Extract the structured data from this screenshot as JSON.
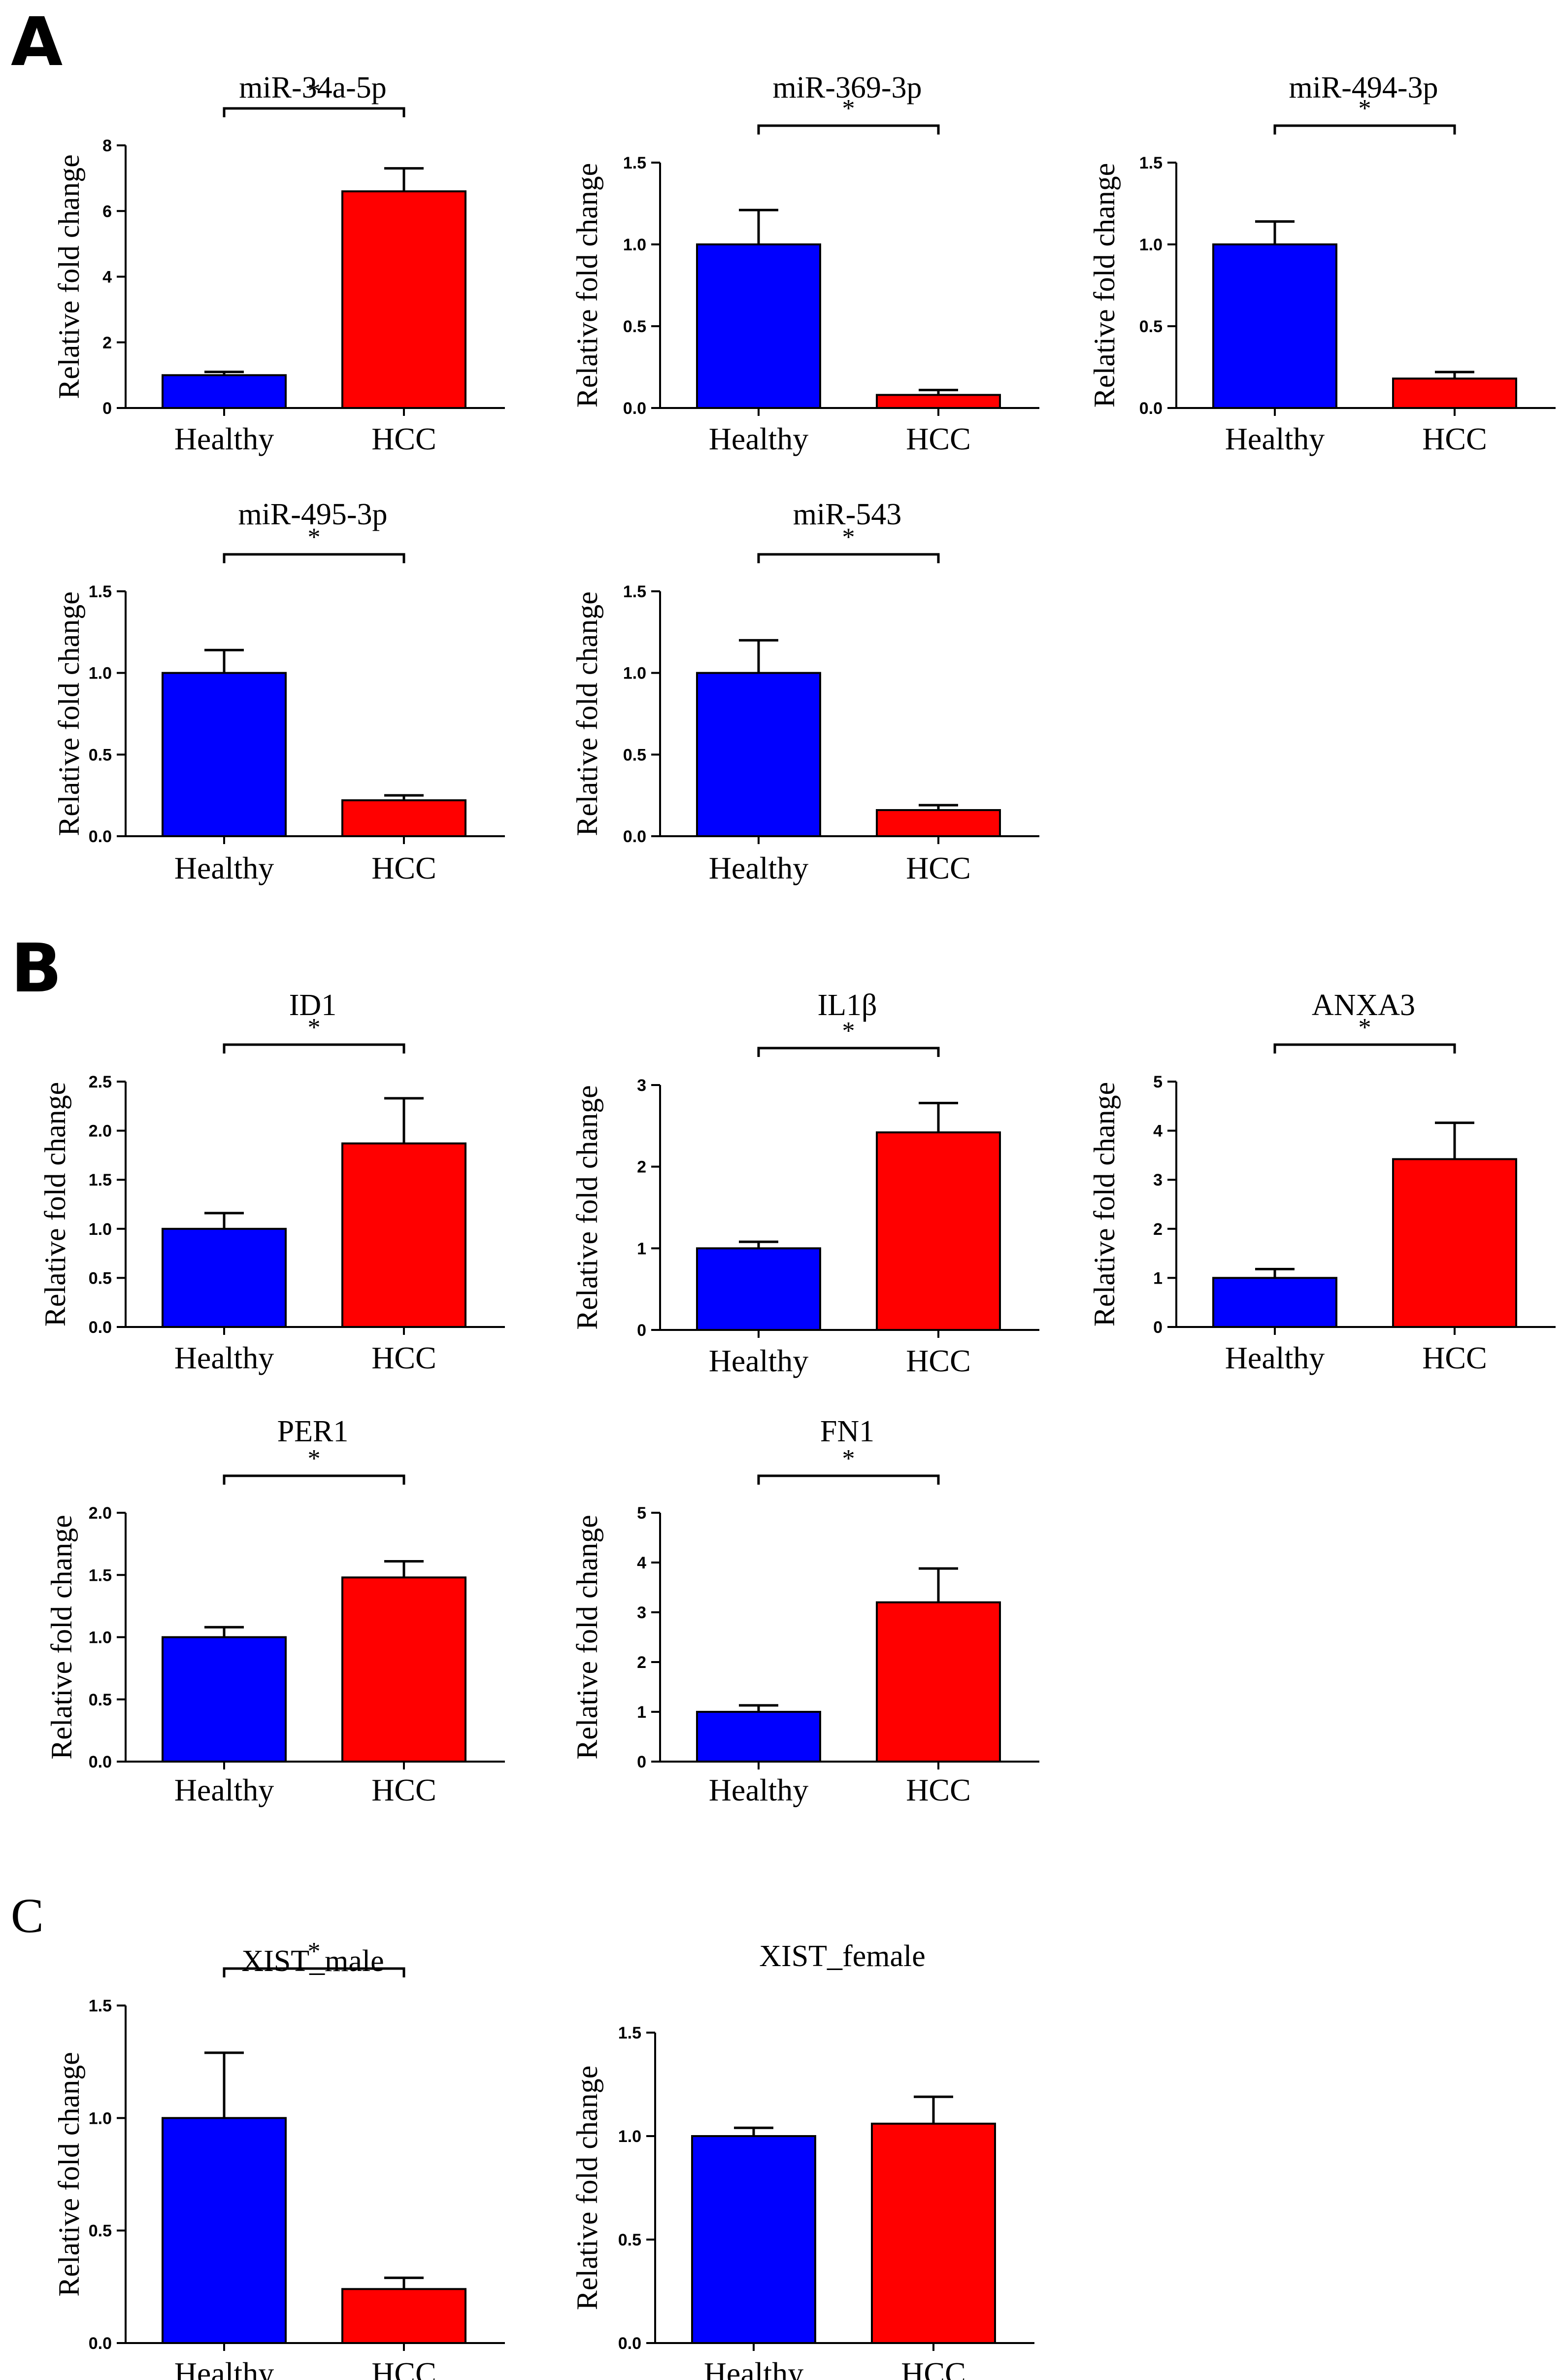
{
  "panels": [
    {
      "label": "A"
    },
    {
      "label": "B"
    },
    {
      "label": "C"
    }
  ],
  "colors": {
    "healthy": "#0000ff",
    "hcc": "#ff0000",
    "axis": "#000000"
  },
  "chart_data": [
    {
      "type": "bar",
      "panel": "A",
      "title": "miR-34a-5p",
      "ylabel": "Relative fold change",
      "categories": [
        "Healthy",
        "HCC"
      ],
      "values": [
        1.0,
        6.6
      ],
      "errors": [
        0.1,
        0.7
      ],
      "ylim": [
        0,
        8
      ],
      "yticks": [
        "0",
        "2",
        "4",
        "6",
        "8"
      ],
      "significance": "*"
    },
    {
      "type": "bar",
      "panel": "A",
      "title": "miR-369-3p",
      "ylabel": "Relative fold change",
      "categories": [
        "Healthy",
        "HCC"
      ],
      "values": [
        1.0,
        0.08
      ],
      "errors": [
        0.21,
        0.03
      ],
      "ylim": [
        0,
        1.5
      ],
      "yticks": [
        "0.0",
        "0.5",
        "1.0",
        "1.5"
      ],
      "significance": "*"
    },
    {
      "type": "bar",
      "panel": "A",
      "title": "miR-494-3p",
      "ylabel": "Relative fold change",
      "categories": [
        "Healthy",
        "HCC"
      ],
      "values": [
        1.0,
        0.18
      ],
      "errors": [
        0.14,
        0.04
      ],
      "ylim": [
        0,
        1.5
      ],
      "yticks": [
        "0.0",
        "0.5",
        "1.0",
        "1.5"
      ],
      "significance": "*"
    },
    {
      "type": "bar",
      "panel": "A",
      "title": "miR-495-3p",
      "ylabel": "Relative fold change",
      "categories": [
        "Healthy",
        "HCC"
      ],
      "values": [
        1.0,
        0.22
      ],
      "errors": [
        0.14,
        0.03
      ],
      "ylim": [
        0,
        1.5
      ],
      "yticks": [
        "0.0",
        "0.5",
        "1.0",
        "1.5"
      ],
      "significance": "*"
    },
    {
      "type": "bar",
      "panel": "A",
      "title": "miR-543",
      "ylabel": "Relative fold change",
      "categories": [
        "Healthy",
        "HCC"
      ],
      "values": [
        1.0,
        0.16
      ],
      "errors": [
        0.2,
        0.03
      ],
      "ylim": [
        0,
        1.5
      ],
      "yticks": [
        "0.0",
        "0.5",
        "1.0",
        "1.5"
      ],
      "significance": "*"
    },
    {
      "type": "bar",
      "panel": "B",
      "title": "ID1",
      "ylabel": "Relative fold change",
      "categories": [
        "Healthy",
        "HCC"
      ],
      "values": [
        1.0,
        1.87
      ],
      "errors": [
        0.16,
        0.46
      ],
      "ylim": [
        0,
        2.5
      ],
      "yticks": [
        "0.0",
        "0.5",
        "1.0",
        "1.5",
        "2.0",
        "2.5"
      ],
      "significance": "*"
    },
    {
      "type": "bar",
      "panel": "B",
      "title": "IL1β",
      "ylabel": "Relative fold change",
      "categories": [
        "Healthy",
        "HCC"
      ],
      "values": [
        1.0,
        2.42
      ],
      "errors": [
        0.08,
        0.36
      ],
      "ylim": [
        0,
        3
      ],
      "yticks": [
        "0",
        "1",
        "2",
        "3"
      ],
      "significance": "*"
    },
    {
      "type": "bar",
      "panel": "B",
      "title": "ANXA3",
      "ylabel": "Relative fold change",
      "categories": [
        "Healthy",
        "HCC"
      ],
      "values": [
        1.0,
        3.42
      ],
      "errors": [
        0.18,
        0.74
      ],
      "ylim": [
        0,
        5
      ],
      "yticks": [
        "0",
        "1",
        "2",
        "3",
        "4",
        "5"
      ],
      "significance": "*"
    },
    {
      "type": "bar",
      "panel": "B",
      "title": "PER1",
      "ylabel": "Relative fold change",
      "categories": [
        "Healthy",
        "HCC"
      ],
      "values": [
        1.0,
        1.48
      ],
      "errors": [
        0.08,
        0.13
      ],
      "ylim": [
        0,
        2.0
      ],
      "yticks": [
        "0.0",
        "0.5",
        "1.0",
        "1.5",
        "2.0"
      ],
      "significance": "*"
    },
    {
      "type": "bar",
      "panel": "B",
      "title": "FN1",
      "ylabel": "Relative fold change",
      "categories": [
        "Healthy",
        "HCC"
      ],
      "values": [
        1.0,
        3.2
      ],
      "errors": [
        0.13,
        0.68
      ],
      "ylim": [
        0,
        5
      ],
      "yticks": [
        "0",
        "1",
        "2",
        "3",
        "4",
        "5"
      ],
      "significance": "*"
    },
    {
      "type": "bar",
      "panel": "C",
      "title": "XIST_male",
      "ylabel": "Relative fold change",
      "categories": [
        "Healthy",
        "HCC"
      ],
      "values": [
        1.0,
        0.24
      ],
      "errors": [
        0.29,
        0.05
      ],
      "ylim": [
        0,
        1.5
      ],
      "yticks": [
        "0.0",
        "0.5",
        "1.0",
        "1.5"
      ],
      "significance": "*"
    },
    {
      "type": "bar",
      "panel": "C",
      "title": "XIST_female",
      "ylabel": "Relative fold change",
      "categories": [
        "Healthy",
        "HCC"
      ],
      "values": [
        1.0,
        1.06
      ],
      "errors": [
        0.04,
        0.13
      ],
      "ylim": [
        0,
        1.5
      ],
      "yticks": [
        "0.0",
        "0.5",
        "1.0",
        "1.5"
      ],
      "significance": ""
    }
  ]
}
